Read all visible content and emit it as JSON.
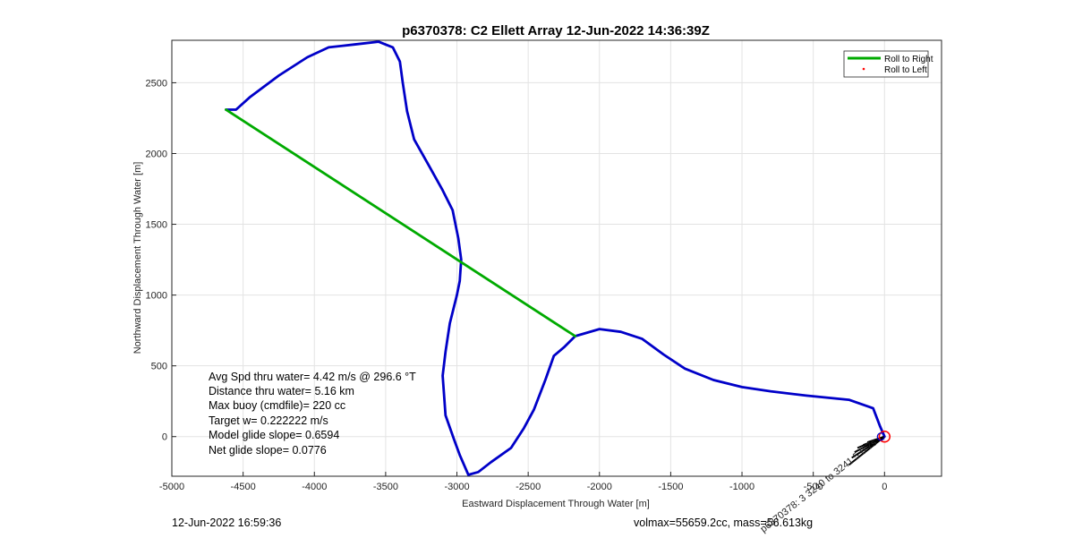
{
  "chart_data": {
    "type": "line",
    "title": "p6370378: C2 Ellett Array 12-Jun-2022 14:36:39Z",
    "xlabel": "Eastward Displacement Through Water [m]",
    "ylabel": "Northward Displacement Through Water [m]",
    "xlim": [
      -5000,
      400
    ],
    "ylim": [
      -280,
      2800
    ],
    "xticks": [
      -5000,
      -4500,
      -4000,
      -3500,
      -3000,
      -2500,
      -2000,
      -1500,
      -1000,
      -500,
      0
    ],
    "yticks": [
      0,
      500,
      1000,
      1500,
      2000,
      2500
    ],
    "grid": true,
    "legend_position": "top-right",
    "series": [
      {
        "name": "Roll to Right",
        "color": "#00aa00",
        "x": [
          -4620,
          -2170
        ],
        "y": [
          2310,
          710
        ]
      },
      {
        "name": "Roll to Left",
        "color": "#ff0000",
        "marker": "point",
        "x": [],
        "y": []
      },
      {
        "color": "#0000c8",
        "x": [
          0,
          -30,
          -80,
          -250,
          -550,
          -800,
          -1000,
          -1200,
          -1400,
          -1550,
          -1700,
          -1850,
          -2000,
          -2170,
          -2250,
          -2320,
          -2380,
          -2460,
          -2530,
          -2620,
          -2760,
          -2850,
          -2920,
          -2980,
          -3020,
          -3080,
          -3100,
          -3080,
          -3050,
          -3000,
          -2980,
          -2970,
          -2990,
          -3030,
          -3100,
          -3200,
          -3300,
          -3350,
          -3380,
          -3400,
          -3450,
          -3550,
          -3720,
          -3900,
          -4050,
          -4250,
          -4450,
          -4550,
          -4620
        ],
        "y": [
          0,
          70,
          200,
          260,
          290,
          320,
          350,
          400,
          480,
          580,
          690,
          740,
          760,
          710,
          630,
          570,
          400,
          190,
          60,
          -80,
          -180,
          -250,
          -270,
          -130,
          -20,
          150,
          430,
          600,
          800,
          1000,
          1100,
          1250,
          1400,
          1600,
          1740,
          1920,
          2100,
          2300,
          2500,
          2650,
          2750,
          2790,
          2770,
          2750,
          2680,
          2550,
          2400,
          2310,
          2310
        ],
        "closing_circle": true
      }
    ],
    "annotation_text": "p6370378: 3 3240 to 3241 5 0 7s"
  },
  "stats": {
    "line1": "Avg Spd thru water=  4.42 m/s @ 296.6 °T",
    "line2": "Distance thru water=  5.16 km",
    "line3": "Max buoy (cmdfile)= 220 cc",
    "line4": "Target w= 0.222222 m/s",
    "line5": "Model glide slope= 0.6594",
    "line6": "Net glide slope= 0.0776"
  },
  "footer": {
    "date": "12-Jun-2022 16:59:36",
    "volume": "volmax=55659.2cc, mass=56.613kg"
  }
}
